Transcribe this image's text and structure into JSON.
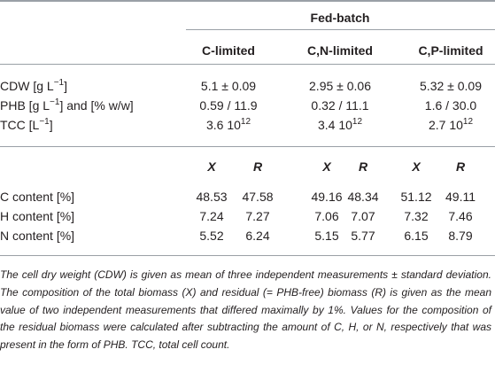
{
  "header": {
    "group": "Fed-batch",
    "columns": [
      "C-limited",
      "C,N-limited",
      "C,P-limited"
    ]
  },
  "section1": {
    "rows": [
      {
        "label_pre": "CDW [g L",
        "label_sup": "−1",
        "label_post": "]",
        "values": [
          "5.1 ± 0.09",
          "2.95 ± 0.06",
          "5.32 ± 0.09"
        ]
      },
      {
        "label_pre": "PHB [g L",
        "label_sup": "−1",
        "label_post": "] and [% w/w]",
        "values": [
          "0.59 / 11.9",
          "0.32 / 11.1",
          "1.6 / 30.0"
        ]
      },
      {
        "label_pre": "TCC [L",
        "label_sup": "−1",
        "label_post": "]",
        "values": [
          {
            "base": "3.6 10",
            "exp": "12"
          },
          {
            "base": "3.4 10",
            "exp": "12"
          },
          {
            "base": "2.7 10",
            "exp": "12"
          }
        ]
      }
    ]
  },
  "section2": {
    "subheaders": [
      "X",
      "R",
      "X",
      "R",
      "X",
      "R"
    ],
    "rows": [
      {
        "label": "C content [%]",
        "values": [
          "48.53",
          "47.58",
          "49.16",
          "48.34",
          "51.12",
          "49.11"
        ]
      },
      {
        "label": "H content [%]",
        "values": [
          "7.24",
          "7.27",
          "7.06",
          "7.07",
          "7.32",
          "7.46"
        ]
      },
      {
        "label": "N content [%]",
        "values": [
          "5.52",
          "6.24",
          "5.15",
          "5.77",
          "6.15",
          "8.79"
        ]
      }
    ]
  },
  "footnote": "The cell dry weight (CDW) is given as mean of three independent measurements ± standard deviation. The composition of the total biomass (X) and residual (= PHB-free) biomass (R) is given as the mean value of two independent measurements that differed maximally by 1%. Values for the composition of the residual biomass were calculated after subtracting the amount of C, H, or N, respectively that was present in the form of PHB. TCC, total cell count."
}
